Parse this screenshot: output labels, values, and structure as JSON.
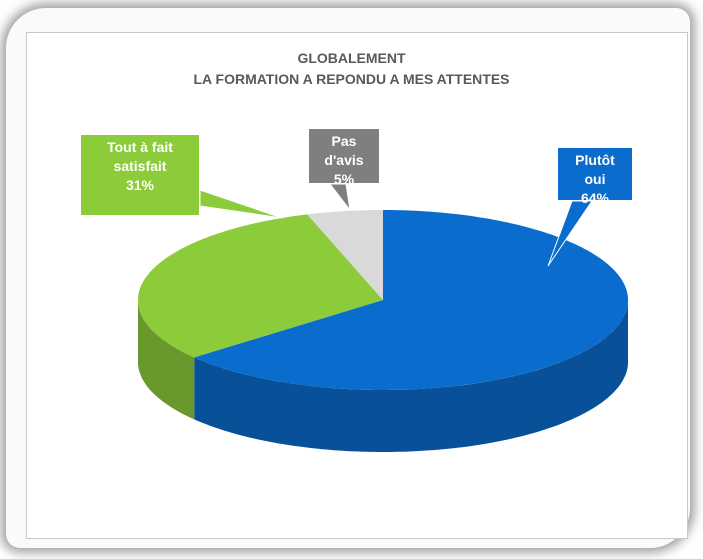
{
  "chart_data": {
    "type": "pie3d",
    "title": "GLOBALEMENT",
    "subtitle": "LA FORMATION A REPONDU A MES ATTENTES",
    "categories": [
      "Plutôt oui",
      "Tout à fait satisfait",
      "Pas d'avis"
    ],
    "values": [
      64,
      31,
      5
    ],
    "value_labels": [
      "64%",
      "31%",
      "5%"
    ],
    "colors": [
      "#0a6ccc",
      "#8ccb3a",
      "#d9d9d9"
    ],
    "label_colors": [
      "#0a6ccc",
      "#8ccb3a",
      "#7f7f7f"
    ]
  }
}
